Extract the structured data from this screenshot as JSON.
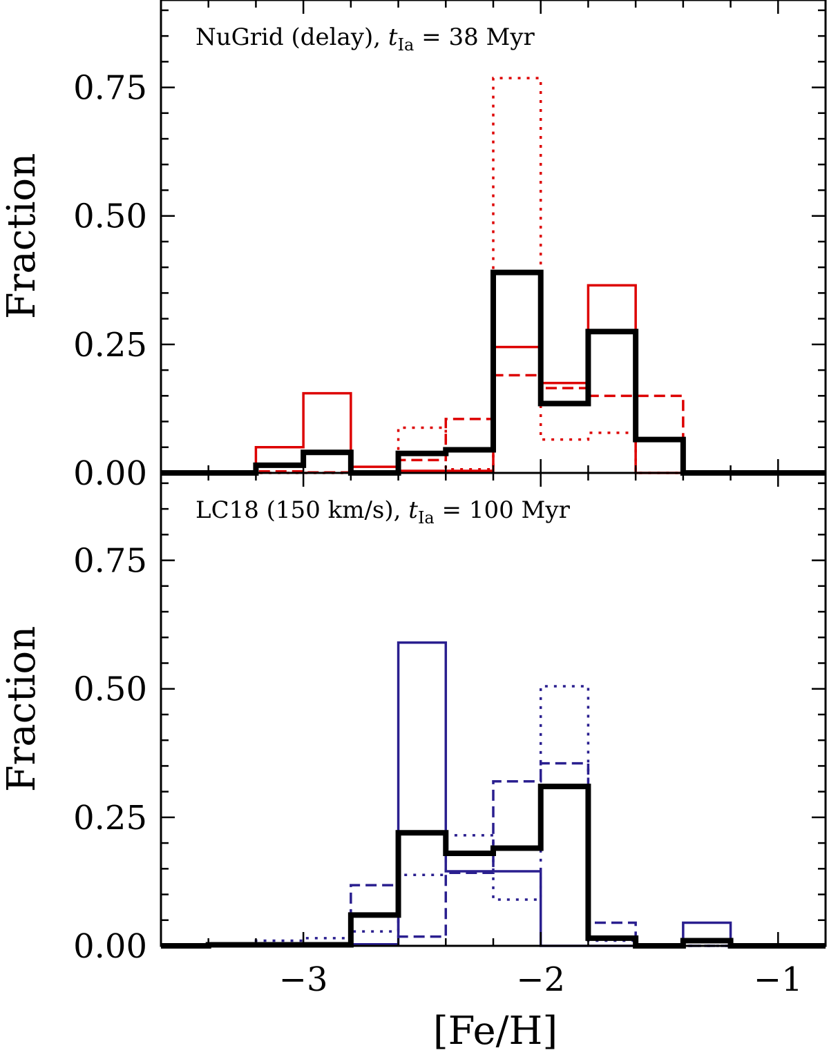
{
  "figure": {
    "xlabel": "[Fe/H]",
    "colors": {
      "axis": "#000000",
      "observed": "#000000",
      "top_model": "#dd0000",
      "bottom_model": "#2a1f8f"
    }
  },
  "chart_data": [
    {
      "type": "histogram",
      "panel": "top",
      "annotation": "NuGrid (delay), t_Ia = 38 Myr",
      "annotation_parts": {
        "prefix": "NuGrid (delay), ",
        "t": "t",
        "sub": "Ia",
        "suffix": " = 38 Myr"
      },
      "ylabel": "Fraction",
      "xlim": [
        -3.6,
        -0.8
      ],
      "ylim": [
        0,
        0.92
      ],
      "yticks": [
        0.0,
        0.25,
        0.5,
        0.75
      ],
      "ytick_labels": [
        "0.00",
        "0.25",
        "0.50",
        "0.75"
      ],
      "bin_edges": [
        -3.6,
        -3.4,
        -3.2,
        -3.0,
        -2.8,
        -2.6,
        -2.4,
        -2.2,
        -2.0,
        -1.8,
        -1.6,
        -1.4,
        -1.2,
        -1.0,
        -0.8
      ],
      "series": [
        {
          "name": "model-solid",
          "style": "solid",
          "color": "#dd0000",
          "values": [
            0,
            0,
            0.05,
            0.155,
            0.012,
            0.004,
            0.004,
            0.245,
            0.175,
            0.365,
            0,
            0,
            0,
            0
          ]
        },
        {
          "name": "model-dashed",
          "style": "dashed",
          "color": "#dd0000",
          "values": [
            0,
            0,
            0.003,
            0.001,
            0.001,
            0.025,
            0.105,
            0.19,
            0.165,
            0.15,
            0.15,
            0,
            0,
            0
          ]
        },
        {
          "name": "model-dotted",
          "style": "dotted",
          "color": "#dd0000",
          "values": [
            0,
            0,
            0,
            0,
            0,
            0.088,
            0.007,
            0.768,
            0.065,
            0.078,
            0,
            0,
            0,
            0
          ]
        },
        {
          "name": "observed",
          "style": "thick",
          "color": "#000000",
          "values": [
            0,
            0,
            0.015,
            0.04,
            0,
            0.038,
            0.045,
            0.39,
            0.135,
            0.275,
            0.065,
            0,
            0,
            0
          ]
        }
      ]
    },
    {
      "type": "histogram",
      "panel": "bottom",
      "annotation": "LC18 (150 km/s), t_Ia = 100 Myr",
      "annotation_parts": {
        "prefix": "LC18 (150 km/s), ",
        "t": "t",
        "sub": "Ia",
        "suffix": " = 100 Myr"
      },
      "ylabel": "Fraction",
      "xlabel": "[Fe/H]",
      "xlim": [
        -3.6,
        -0.8
      ],
      "ylim": [
        0,
        0.92
      ],
      "yticks": [
        0.0,
        0.25,
        0.5,
        0.75
      ],
      "ytick_labels": [
        "0.00",
        "0.25",
        "0.50",
        "0.75"
      ],
      "xticks": [
        -3,
        -2,
        -1
      ],
      "xtick_labels": [
        "−3",
        "−2",
        "−1"
      ],
      "bin_edges": [
        -3.6,
        -3.4,
        -3.2,
        -3.0,
        -2.8,
        -2.6,
        -2.4,
        -2.2,
        -2.0,
        -1.8,
        -1.6,
        -1.4,
        -1.2,
        -1.0,
        -0.8
      ],
      "series": [
        {
          "name": "model-solid",
          "style": "solid",
          "color": "#2a1f8f",
          "values": [
            0,
            0.003,
            0.003,
            0.003,
            0.003,
            0.59,
            0.145,
            0.145,
            0,
            0,
            0,
            0.045,
            0,
            0
          ]
        },
        {
          "name": "model-dashed",
          "style": "dashed",
          "color": "#2a1f8f",
          "values": [
            0,
            0.002,
            0.005,
            0.005,
            0.118,
            0.018,
            0.142,
            0.32,
            0.355,
            0.045,
            0,
            0,
            0,
            0
          ]
        },
        {
          "name": "model-dotted",
          "style": "dotted",
          "color": "#2a1f8f",
          "values": [
            0,
            0,
            0.01,
            0.015,
            0.028,
            0.138,
            0.215,
            0.09,
            0.505,
            0.01,
            0,
            0,
            0,
            0
          ]
        },
        {
          "name": "observed",
          "style": "thick",
          "color": "#000000",
          "values": [
            0,
            0.002,
            0.002,
            0.002,
            0.06,
            0.22,
            0.18,
            0.19,
            0.31,
            0.015,
            0,
            0.01,
            0,
            0
          ]
        }
      ]
    }
  ]
}
